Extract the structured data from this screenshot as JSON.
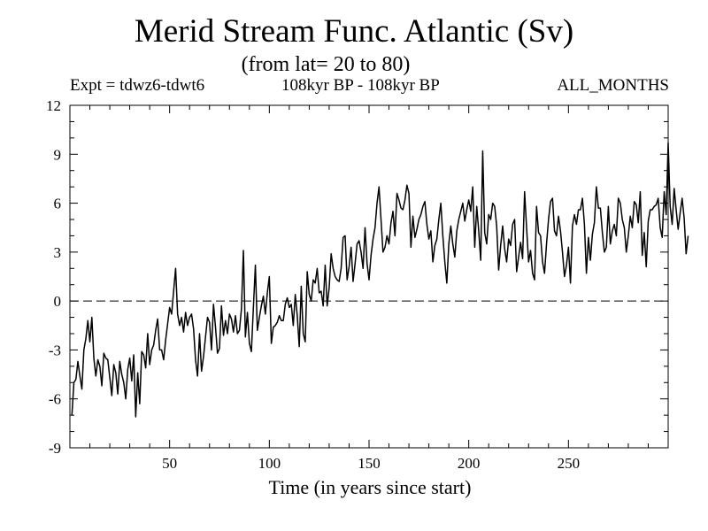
{
  "chart_data": {
    "type": "line",
    "title": "Merid Stream Func. Atlantic (Sv)",
    "subtitle": "(from lat= 20 to 80)",
    "notes": {
      "left": "Expt = tdwz6-tdwt6",
      "center": "108kyr BP - 108kyr BP",
      "right": "ALL_MONTHS"
    },
    "xlabel": "Time (in years since start)",
    "ylabel": "",
    "xlim": [
      0,
      300
    ],
    "ylim": [
      -9,
      12
    ],
    "xticks": [
      50,
      100,
      150,
      200,
      250
    ],
    "yticks": [
      -9,
      -6,
      -3,
      0,
      3,
      6,
      9,
      12
    ],
    "reference_line": {
      "y": 0,
      "style": "dashed"
    },
    "grid": false,
    "series": [
      {
        "color": "#000000",
        "x_start": 1,
        "x_step": 1,
        "values": [
          -7.0,
          -5.0,
          -4.8,
          -3.7,
          -4.6,
          -5.4,
          -3.0,
          -2.3,
          -1.2,
          -2.5,
          -1.0,
          -3.5,
          -4.6,
          -3.6,
          -4.0,
          -5.2,
          -3.2,
          -3.5,
          -3.6,
          -4.7,
          -5.8,
          -3.9,
          -4.4,
          -5.7,
          -3.7,
          -4.5,
          -5.0,
          -6.0,
          -4.2,
          -3.5,
          -4.9,
          -3.3,
          -7.1,
          -4.4,
          -6.3,
          -3.1,
          -3.3,
          -4.1,
          -2.0,
          -3.9,
          -3.0,
          -2.7,
          -1.8,
          -1.1,
          -3.0,
          -3.0,
          -3.6,
          -2.4,
          -1.4,
          -0.4,
          -0.8,
          0.6,
          2.0,
          -0.8,
          -1.5,
          -1.0,
          -1.9,
          -0.7,
          -1.5,
          -1.0,
          -0.8,
          -1.7,
          -3.6,
          -4.6,
          -2.0,
          -4.3,
          -3.4,
          -2.2,
          -1.0,
          -1.3,
          -3.0,
          -0.2,
          -1.6,
          -3.2,
          -2.9,
          -0.3,
          -2.1,
          -1.2,
          -2.0,
          -0.8,
          -1.1,
          -1.9,
          -0.9,
          -2.0,
          -1.8,
          -0.5,
          3.1,
          -2.2,
          -0.7,
          -2.6,
          -3.1,
          -0.4,
          2.2,
          -1.8,
          -1.0,
          -0.3,
          0.3,
          -0.8,
          0.5,
          1.5,
          -2.6,
          -1.6,
          -1.5,
          -1.3,
          -0.9,
          -1.2,
          -1.2,
          -0.2,
          0.2,
          -0.4,
          -0.2,
          -1.5,
          0.4,
          -0.9,
          -2.8,
          0.9,
          -2.0,
          -2.5,
          1.8,
          0.4,
          0.0,
          1.3,
          1.1,
          2.0,
          0.5,
          0.6,
          -0.3,
          2.2,
          -0.3,
          0.8,
          2.9,
          2.0,
          1.5,
          1.3,
          1.2,
          2.0,
          3.9,
          4.0,
          1.3,
          2.1,
          3.3,
          1.2,
          2.3,
          3.5,
          3.7,
          3.0,
          2.0,
          4.5,
          2.3,
          1.3,
          2.8,
          3.8,
          4.5,
          6.0,
          7.0,
          5.0,
          3.0,
          3.3,
          4.0,
          3.5,
          4.8,
          5.5,
          4.0,
          6.6,
          6.2,
          5.7,
          5.6,
          6.2,
          7.1,
          6.6,
          3.3,
          5.2,
          3.9,
          4.4,
          5.0,
          5.3,
          5.8,
          6.1,
          4.7,
          3.8,
          4.3,
          2.4,
          3.4,
          3.8,
          5.0,
          6.0,
          4.0,
          2.4,
          1.1,
          3.5,
          4.6,
          3.5,
          2.7,
          4.3,
          5.0,
          5.5,
          6.0,
          4.9,
          5.6,
          6.2,
          5.5,
          7.0,
          3.3,
          5.8,
          4.3,
          2.5,
          9.2,
          4.2,
          3.5,
          5.3,
          5.0,
          6.0,
          5.8,
          4.6,
          1.9,
          3.4,
          4.6,
          3.2,
          2.4,
          3.8,
          3.4,
          4.7,
          5.0,
          1.8,
          2.7,
          3.6,
          2.6,
          6.7,
          4.5,
          2.4,
          3.1,
          1.7,
          1.3,
          5.8,
          4.2,
          4.0,
          2.4,
          1.7,
          3.5,
          5.0,
          6.1,
          6.3,
          4.3,
          4.0,
          5.2,
          4.3,
          3.0,
          1.5,
          2.2,
          3.3,
          1.1,
          4.6,
          5.3,
          4.7,
          5.6,
          5.6,
          6.3,
          4.7,
          1.7,
          3.9,
          2.5,
          4.1,
          4.8,
          7.0,
          5.7,
          5.7,
          4.2,
          3.0,
          3.3,
          5.8,
          3.5,
          4.3,
          4.7,
          4.0,
          6.3,
          6.0,
          5.0,
          4.5,
          3.0,
          4.0,
          5.2,
          4.5,
          6.1,
          5.9,
          4.8,
          6.7,
          2.8,
          4.2,
          2.1,
          4.9,
          5.6,
          5.6,
          5.8,
          5.9,
          6.3,
          4.5,
          3.9,
          6.7,
          5.3,
          9.7,
          5.8,
          4.7,
          6.9,
          5.6,
          4.4,
          5.4,
          6.3,
          5.1,
          2.9,
          4.0
        ]
      }
    ]
  }
}
